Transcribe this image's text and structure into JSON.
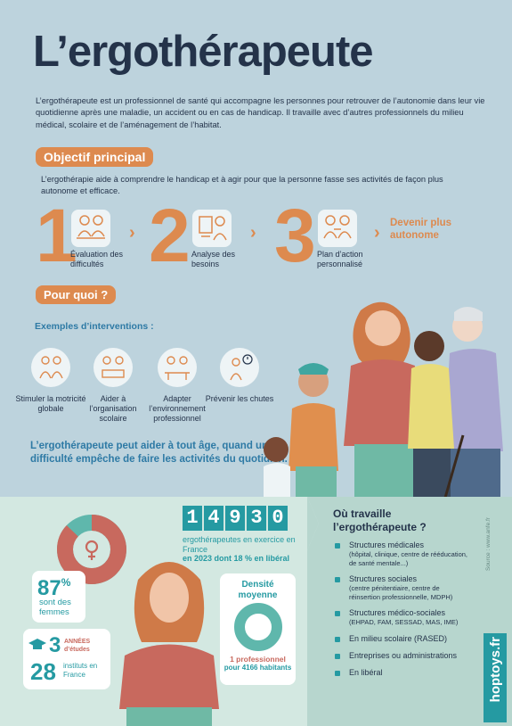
{
  "header": {
    "title": "L’ergothérapeute",
    "intro": "L’ergothérapeute est un professionnel de santé qui accompagne les personnes pour retrouver de l’autonomie dans leur vie quotidienne après une maladie, un accident ou en cas de handicap. Il travaille avec d’autres professionnels du milieu médical, scolaire et de l’aménagement de l’habitat."
  },
  "objectif": {
    "heading": "Objectif principal",
    "description": "L’ergothérapie aide à comprendre le handicap et à agir pour que la personne fasse ses activités de façon plus autonome et efficace.",
    "steps": [
      {
        "number": "1",
        "label": "Évaluation des difficultés",
        "icon": "evaluation-icon"
      },
      {
        "number": "2",
        "label": "Analyse des besoins",
        "icon": "analysis-icon"
      },
      {
        "number": "3",
        "label": "Plan d’action personnalisé",
        "icon": "action-plan-icon"
      }
    ],
    "result": "Devenir plus autonome"
  },
  "pourquoi": {
    "heading": "Pour quoi ?",
    "examples_heading": "Exemples d’interventions :",
    "interventions": [
      {
        "label": "Stimuler la motricité globale",
        "icon": "motricity-icon"
      },
      {
        "label": "Aider à l’organisation scolaire",
        "icon": "school-icon"
      },
      {
        "label": "Adapter l’environnement professionnel",
        "icon": "workplace-icon"
      },
      {
        "label": "Prévenir les chutes",
        "icon": "fall-prevention-icon"
      }
    ],
    "age_statement": "L’ergothérapeute peut aider à tout âge, quand une difficulté empêche de faire les activités du quotidien."
  },
  "stats": {
    "count_digits": [
      "1",
      "4",
      "9",
      "3",
      "0"
    ],
    "count_label": "ergothérapeutes en exercice en France",
    "count_note": "en 2023 dont 18 % en libéral",
    "women_percent": "87",
    "women_percent_sign": "%",
    "women_label": "sont des femmes",
    "women_share": 0.87,
    "study_years": "3",
    "study_label": "ANNÉES d’études",
    "institutes": "28",
    "institutes_label": "instituts en France",
    "density_heading": "Densité moyenne",
    "density_value": "1 professionnel",
    "density_detail": "pour 4166 habitants"
  },
  "where": {
    "heading": "Où travaille l’ergothérapeute ?",
    "items": [
      {
        "label": "Structures médicales",
        "detail": "(hôpital, clinique, centre de rééducation, de santé mentale...)"
      },
      {
        "label": "Structures sociales",
        "detail": "(centre pénitentiaire, centre de réinsertion professionnelle, MDPH)"
      },
      {
        "label": "Structures médico-sociales",
        "detail": "(EHPAD, FAM, SESSAD, MAS, IME)"
      },
      {
        "label": "En milieu scolaire (RASED)",
        "detail": ""
      },
      {
        "label": "Entreprises ou administrations",
        "detail": ""
      },
      {
        "label": "En libéral",
        "detail": ""
      }
    ]
  },
  "footer": {
    "source": "Source : www.anfe.fr",
    "brand": "hoptoys.fr"
  },
  "colors": {
    "orange": "#dd8a4f",
    "navy": "#24334a",
    "teal": "#259aa2",
    "blue": "#2e7aa5",
    "donut_red": "#c8695e",
    "donut_teal": "#5fb7ac"
  }
}
